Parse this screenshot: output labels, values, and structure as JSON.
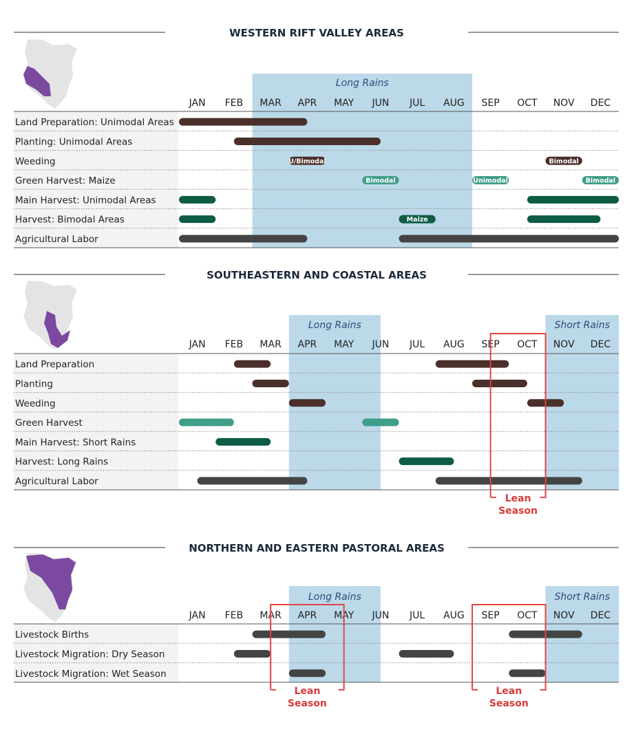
{
  "colors": {
    "rain_band": "#bcd9e9",
    "label_bg": "#f2f3f2",
    "map_gray": "#e4e4e4",
    "map_purple": "#7b4aa0",
    "preparation": "#4a2f2a",
    "green_harvest": "#3f9e88",
    "harvest": "#0e5b46",
    "labor": "#444444",
    "lean": "#e04545"
  },
  "chart_data": [
    {
      "type": "timeline",
      "title": "WESTERN RIFT VALLEY AREAS",
      "months": [
        "JAN",
        "FEB",
        "MAR",
        "APR",
        "MAY",
        "JUN",
        "JUL",
        "AUG",
        "SEP",
        "OCT",
        "NOV",
        "DEC"
      ],
      "rains": [
        {
          "label": "Long Rains",
          "start": 2.0,
          "end": 8.0
        }
      ],
      "lean": [],
      "rows": [
        {
          "label": "Land Preparation: Unimodal Areas",
          "bars": [
            {
              "start": 1.0,
              "end": 4.5,
              "color": "preparation"
            }
          ]
        },
        {
          "label": "Planting: Unimodal Areas",
          "bars": [
            {
              "start": 2.5,
              "end": 6.5,
              "color": "preparation"
            }
          ]
        },
        {
          "label": "Weeding",
          "bars": [
            {
              "start": 4.0,
              "end": 5.0,
              "color": "preparation",
              "text": "U/Bimodal"
            },
            {
              "start": 11.0,
              "end": 12.0,
              "color": "preparation",
              "text": "Bimodal"
            }
          ]
        },
        {
          "label": "Green Harvest: Maize",
          "bars": [
            {
              "start": 6.0,
              "end": 7.0,
              "color": "green_harvest",
              "text": "Bimodal"
            },
            {
              "start": 9.0,
              "end": 10.0,
              "color": "green_harvest",
              "text": "Unimodal"
            },
            {
              "start": 12.0,
              "end": 13.0,
              "color": "green_harvest",
              "text": "Bimodal"
            }
          ]
        },
        {
          "label": "Main Harvest: Unimodal Areas",
          "bars": [
            {
              "start": 1.0,
              "end": 2.0,
              "color": "harvest"
            },
            {
              "start": 10.5,
              "end": 13.0,
              "color": "harvest"
            }
          ]
        },
        {
          "label": "Harvest: Bimodal Areas",
          "bars": [
            {
              "start": 1.0,
              "end": 2.0,
              "color": "harvest"
            },
            {
              "start": 7.0,
              "end": 8.0,
              "color": "harvest",
              "text": "Maize"
            },
            {
              "start": 10.5,
              "end": 12.5,
              "color": "harvest"
            }
          ]
        },
        {
          "label": "Agricultural Labor",
          "bars": [
            {
              "start": 1.0,
              "end": 4.5,
              "color": "labor"
            },
            {
              "start": 7.0,
              "end": 13.0,
              "color": "labor"
            }
          ]
        }
      ]
    },
    {
      "type": "timeline",
      "title": "SOUTHEASTERN AND COASTAL AREAS",
      "months": [
        "JAN",
        "FEB",
        "MAR",
        "APR",
        "MAY",
        "JUN",
        "JUL",
        "AUG",
        "SEP",
        "OCT",
        "NOV",
        "DEC"
      ],
      "rains": [
        {
          "label": "Long Rains",
          "start": 3.0,
          "end": 5.5
        },
        {
          "label": "Short Rains",
          "start": 10.0,
          "end": 12.0
        }
      ],
      "lean": [
        {
          "label": "Lean Season",
          "start": 8.5,
          "end": 10.0
        }
      ],
      "rows": [
        {
          "label": "Land Preparation",
          "bars": [
            {
              "start": 2.5,
              "end": 3.5,
              "color": "preparation"
            },
            {
              "start": 8.0,
              "end": 10.0,
              "color": "preparation"
            }
          ]
        },
        {
          "label": "Planting",
          "bars": [
            {
              "start": 3.0,
              "end": 4.0,
              "color": "preparation"
            },
            {
              "start": 9.0,
              "end": 10.5,
              "color": "preparation"
            }
          ]
        },
        {
          "label": "Weeding",
          "bars": [
            {
              "start": 4.0,
              "end": 5.0,
              "color": "preparation"
            },
            {
              "start": 10.5,
              "end": 11.5,
              "color": "preparation"
            }
          ]
        },
        {
          "label": "Green Harvest",
          "bars": [
            {
              "start": 1.0,
              "end": 2.5,
              "color": "green_harvest"
            },
            {
              "start": 6.0,
              "end": 7.0,
              "color": "green_harvest"
            }
          ]
        },
        {
          "label": "Main Harvest: Short Rains",
          "bars": [
            {
              "start": 2.0,
              "end": 3.5,
              "color": "harvest"
            }
          ]
        },
        {
          "label": "Harvest: Long Rains",
          "bars": [
            {
              "start": 7.0,
              "end": 8.5,
              "color": "harvest"
            }
          ]
        },
        {
          "label": "Agricultural Labor",
          "bars": [
            {
              "start": 1.5,
              "end": 4.5,
              "color": "labor"
            },
            {
              "start": 8.0,
              "end": 12.0,
              "color": "labor"
            }
          ]
        }
      ]
    },
    {
      "type": "timeline",
      "title": "NORTHERN AND EASTERN PASTORAL AREAS",
      "months": [
        "JAN",
        "FEB",
        "MAR",
        "APR",
        "MAY",
        "JUN",
        "JUL",
        "AUG",
        "SEP",
        "OCT",
        "NOV",
        "DEC"
      ],
      "rains": [
        {
          "label": "Long Rains",
          "start": 3.0,
          "end": 5.5
        },
        {
          "label": "Short Rains",
          "start": 10.0,
          "end": 12.0
        }
      ],
      "lean": [
        {
          "label": "Lean Season",
          "start": 2.5,
          "end": 4.5
        },
        {
          "label": "Lean Season",
          "start": 8.0,
          "end": 10.0
        }
      ],
      "rows": [
        {
          "label": "Livestock Births",
          "bars": [
            {
              "start": 3.0,
              "end": 5.0,
              "color": "labor"
            },
            {
              "start": 10.0,
              "end": 12.0,
              "color": "labor"
            }
          ]
        },
        {
          "label": "Livestock Migration: Dry Season",
          "bars": [
            {
              "start": 2.5,
              "end": 3.5,
              "color": "labor"
            },
            {
              "start": 7.0,
              "end": 8.5,
              "color": "labor"
            }
          ]
        },
        {
          "label": "Livestock Migration: Wet Season",
          "bars": [
            {
              "start": 4.0,
              "end": 5.0,
              "color": "labor"
            },
            {
              "start": 10.0,
              "end": 11.0,
              "color": "labor"
            }
          ]
        }
      ]
    }
  ]
}
